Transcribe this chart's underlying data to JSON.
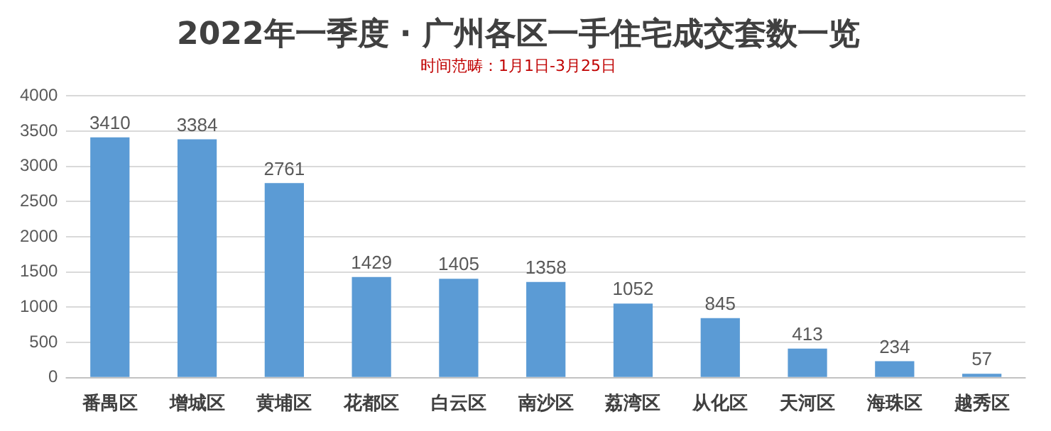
{
  "chart_data": {
    "type": "bar",
    "title": "2022年一季度 · 广州各区一手住宅成交套数一览",
    "subtitle": "时间范畴：1月1日-3月25日",
    "categories": [
      "番禺区",
      "增城区",
      "黄埔区",
      "花都区",
      "白云区",
      "南沙区",
      "荔湾区",
      "从化区",
      "天河区",
      "海珠区",
      "越秀区"
    ],
    "values": [
      3410,
      3384,
      2761,
      1429,
      1405,
      1358,
      1052,
      845,
      413,
      234,
      57
    ],
    "color": "#5b9bd5",
    "ylim": [
      0,
      4000
    ],
    "yticks": [
      0,
      500,
      1000,
      1500,
      2000,
      2500,
      3000,
      3500,
      4000
    ],
    "grid": "y",
    "data_labels": true,
    "legend": false
  }
}
